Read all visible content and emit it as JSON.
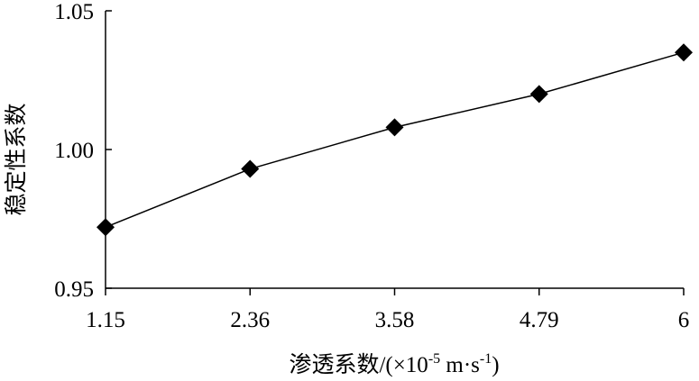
{
  "chart_data": {
    "type": "line",
    "title": "",
    "xlabel": "渗透系数/(×10",
    "xlabel_exponent": "-5",
    "xlabel_unit": " m·s",
    "xlabel_unit_exponent": "-1",
    "xlabel_tail": ")",
    "ylabel": "稳定性系数",
    "categories": [
      "1.15",
      "2.36",
      "3.58",
      "4.79",
      "6"
    ],
    "ylim": [
      0.95,
      1.05
    ],
    "yticks": [
      "0.95",
      "1.00",
      "1.05"
    ],
    "series": [
      {
        "marker": "diamond",
        "color": "#000000",
        "values": [
          0.972,
          0.993,
          1.008,
          1.02,
          1.035
        ]
      }
    ],
    "grid": false,
    "legend": "none"
  }
}
